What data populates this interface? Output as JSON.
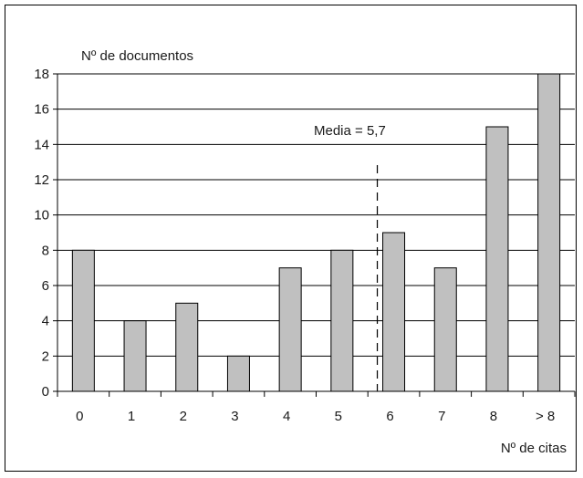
{
  "chart_data": {
    "type": "bar",
    "title": "",
    "ylabel": "Nº de documentos",
    "xlabel": "Nº de citas",
    "categories": [
      "0",
      "1",
      "2",
      "3",
      "4",
      "5",
      "6",
      "7",
      "8",
      "> 8"
    ],
    "values": [
      8,
      4,
      5,
      2,
      7,
      8,
      9,
      7,
      15,
      18
    ],
    "ylim": [
      0,
      18
    ],
    "yticks": [
      "0",
      "2",
      "4",
      "6",
      "8",
      "10",
      "12",
      "14",
      "16",
      "18"
    ],
    "grid": true,
    "bar_color": "#c0c0c0",
    "mean": {
      "value": 5.7,
      "label": "Media = 5,7"
    }
  }
}
